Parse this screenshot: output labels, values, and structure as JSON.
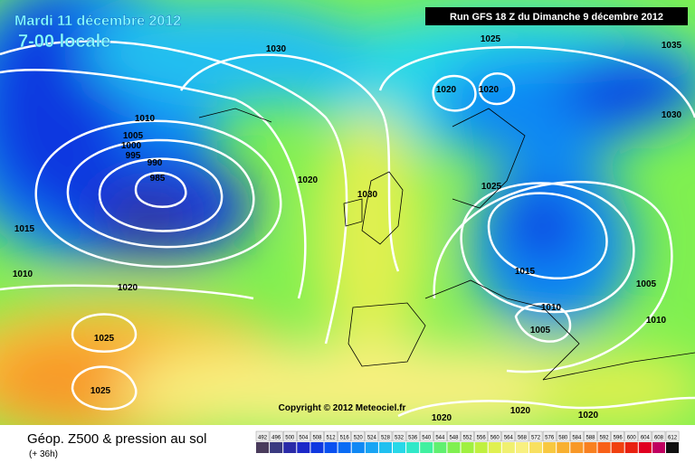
{
  "header": {
    "date": "Mardi 11 décembre 2012",
    "time": "7-00 locale",
    "run": "Run GFS 18 Z du Dimanche 9 décembre 2012"
  },
  "copyright": "Copyright © 2012 Meteociel.fr",
  "footer": {
    "title": "Géop. Z500 & pression au sol",
    "lead": "(+ 36h)"
  },
  "isobars": [
    1030,
    1025,
    1035,
    1020,
    1020,
    1010,
    1005,
    1000,
    995,
    990,
    985,
    1030,
    1020,
    1030,
    1025,
    1015,
    1010,
    1020,
    1015,
    1010,
    1005,
    1010,
    1005,
    1025,
    1025,
    1020,
    1020,
    1020
  ],
  "scale": {
    "labels": [
      492,
      496,
      500,
      504,
      508,
      512,
      516,
      520,
      524,
      528,
      532,
      536,
      540,
      544,
      548,
      552,
      556,
      560,
      564,
      568,
      572,
      576,
      580,
      584,
      588,
      592,
      596,
      600,
      604,
      608,
      612
    ],
    "colors": [
      "#4a3c5c",
      "#3a3a80",
      "#2a2aa8",
      "#1c28c8",
      "#1038e0",
      "#0a50f0",
      "#0a6cf4",
      "#1088f4",
      "#18a4f4",
      "#20c0f0",
      "#28d8e8",
      "#30e8c8",
      "#40f0a0",
      "#60f070",
      "#80f050",
      "#a0f040",
      "#c0f040",
      "#e0f050",
      "#f0f070",
      "#f8f080",
      "#f8e060",
      "#f8c840",
      "#f8b030",
      "#f89828",
      "#f88020",
      "#f86018",
      "#f04010",
      "#e82010",
      "#e00020",
      "#c00060",
      "#101010"
    ]
  }
}
